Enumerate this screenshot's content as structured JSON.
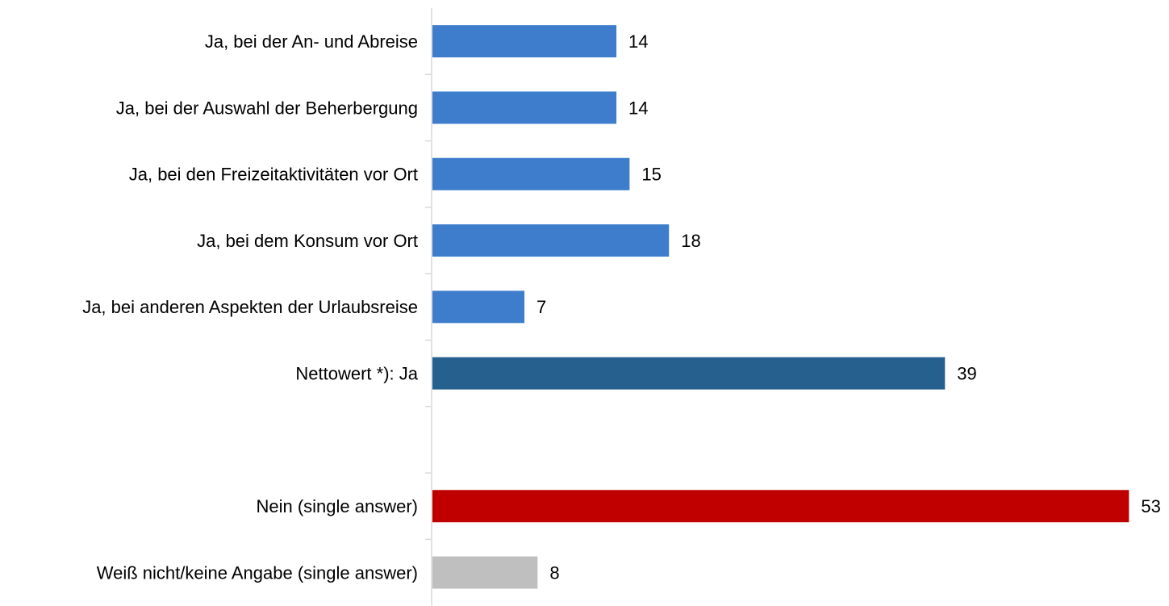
{
  "chart_data": {
    "type": "bar",
    "orientation": "horizontal",
    "categories": [
      "Ja, bei der An- und Abreise",
      "Ja, bei der Auswahl der Beherbergung",
      "Ja, bei den Freizeitaktivitäten vor Ort",
      "Ja, bei dem Konsum vor Ort",
      "Ja, bei anderen Aspekten der Urlaubsreise",
      "Nettowert *): Ja",
      null,
      "Nein (single answer)",
      "Weiß nicht/keine Angabe (single answer)"
    ],
    "values": [
      14,
      14,
      15,
      18,
      7,
      39,
      null,
      53,
      8
    ],
    "colors": [
      "#3e7dcc",
      "#3e7dcc",
      "#3e7dcc",
      "#3e7dcc",
      "#3e7dcc",
      "#26608f",
      null,
      "#c00000",
      "#bfbfbf"
    ]
  }
}
